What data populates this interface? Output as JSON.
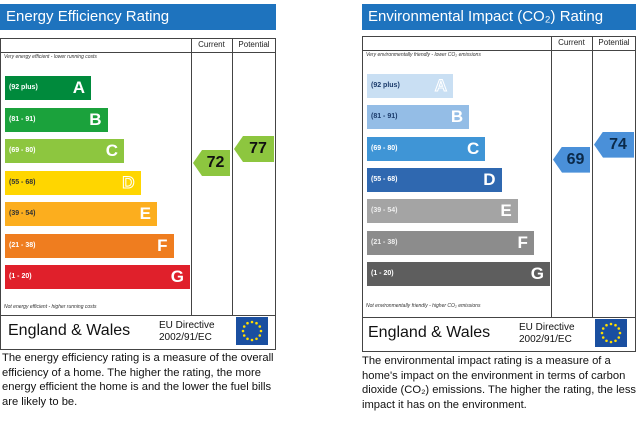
{
  "energy": {
    "title": "Energy Efficiency Rating",
    "col_current": "Current",
    "col_potential": "Potential",
    "top_note": "Very energy efficient - lower running costs",
    "bottom_note": "Not energy efficient - higher running costs",
    "region": "England & Wales",
    "directive_line1": "EU Directive",
    "directive_line2": "2002/91/EC",
    "description": "The energy efficiency rating is a measure of the overall efficiency of a home. The higher the rating, the more energy efficient the home is and the lower the fuel bills are likely to be."
  },
  "environment": {
    "title": "Environmental Impact (CO₂) Rating",
    "col_current": "Current",
    "col_potential": "Potential",
    "top_note": "Very environmentally friendly - lower CO₂ emissions",
    "bottom_note": "Not environmentally friendly - higher CO₂ emissions",
    "region": "England & Wales",
    "directive_line1": "EU Directive",
    "directive_line2": "2002/91/EC",
    "description": "The environmental impact rating is a measure of a home's impact on the environment in terms of carbon dioxide (CO₂) emissions. The higher the rating, the less impact it has on the environment."
  },
  "chart_data": [
    {
      "type": "bar",
      "title": "Energy Efficiency Rating",
      "categories": [
        "A",
        "B",
        "C",
        "D",
        "E",
        "F",
        "G"
      ],
      "ranges": [
        "(92 plus)",
        "(81 - 91)",
        "(69 - 80)",
        "(55 - 68)",
        "(39 - 54)",
        "(21 - 38)",
        "(1 - 20)"
      ],
      "colors": [
        "#008a3c",
        "#1ba23c",
        "#8dc63f",
        "#ffd600",
        "#fcae1e",
        "#ef7d1f",
        "#e0202b"
      ],
      "current": 72,
      "current_band": "C",
      "potential": 77,
      "potential_band": "C",
      "marker_color": "#8dc63f",
      "outlined_band": "D"
    },
    {
      "type": "bar",
      "title": "Environmental Impact (CO₂) Rating",
      "categories": [
        "A",
        "B",
        "C",
        "D",
        "E",
        "F",
        "G"
      ],
      "ranges": [
        "(92 plus)",
        "(81 - 91)",
        "(69 - 80)",
        "(55 - 68)",
        "(39 - 54)",
        "(21 - 38)",
        "(1 - 20)"
      ],
      "colors": [
        "#c9dff3",
        "#94bde6",
        "#3f95d6",
        "#2f68b0",
        "#a4a4a4",
        "#8c8c8c",
        "#5e5e5e"
      ],
      "current": 69,
      "current_band": "C",
      "potential": 74,
      "potential_band": "C",
      "marker_color": "#4a90d9",
      "outlined_band": "A"
    }
  ]
}
